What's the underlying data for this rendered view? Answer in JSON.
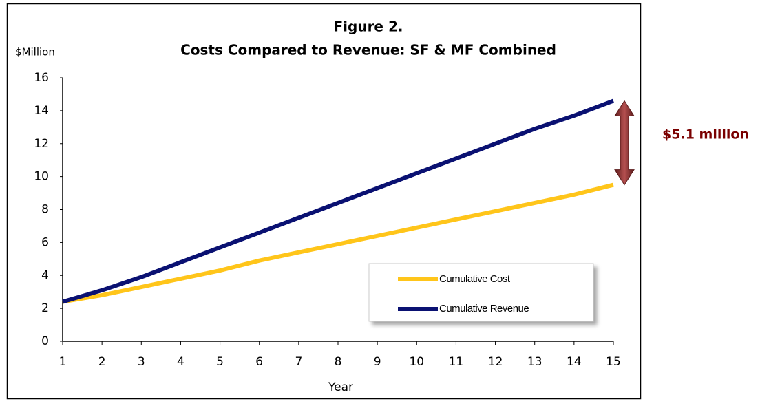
{
  "chart_data": {
    "type": "line",
    "title": "Figure 2.",
    "subtitle": "Costs Compared to Revenue: SF & MF Combined",
    "y_label": "$Million",
    "x_label": "Year",
    "annotation": "$5.1 million",
    "x": [
      1,
      2,
      3,
      4,
      5,
      6,
      7,
      8,
      9,
      10,
      11,
      12,
      13,
      14,
      15
    ],
    "series": [
      {
        "name": "Cumulative Cost",
        "color": "#ffc51a",
        "values": [
          2.4,
          2.8,
          3.3,
          3.8,
          4.3,
          4.9,
          5.4,
          5.9,
          6.4,
          6.9,
          7.4,
          7.9,
          8.4,
          8.9,
          9.5
        ]
      },
      {
        "name": "Cumulative Revenue",
        "color": "#0a1172",
        "values": [
          2.4,
          3.1,
          3.9,
          4.8,
          5.7,
          6.6,
          7.5,
          8.4,
          9.3,
          10.2,
          11.1,
          12.0,
          12.9,
          13.7,
          14.6
        ]
      }
    ],
    "xlim": [
      1,
      15
    ],
    "xticks": [
      1,
      2,
      3,
      4,
      5,
      6,
      7,
      8,
      9,
      10,
      11,
      12,
      13,
      14,
      15
    ],
    "ylim": [
      0,
      16
    ],
    "yticks": [
      0,
      2,
      4,
      6,
      8,
      10,
      12,
      14,
      16
    ],
    "grid": false,
    "legend": "lower right"
  }
}
